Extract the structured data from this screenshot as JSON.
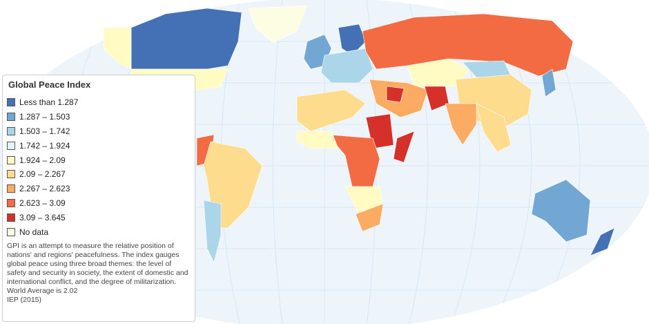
{
  "legend": {
    "title": "Global Peace Index",
    "items": [
      {
        "label": "Less than 1.287",
        "color": "#4470b5"
      },
      {
        "label": "1.287 – 1.503",
        "color": "#72a7d3"
      },
      {
        "label": "1.503 – 1.742",
        "color": "#abd6ea"
      },
      {
        "label": "1.742 – 1.924",
        "color": "#e3f3f8"
      },
      {
        "label": "1.924 – 2.09",
        "color": "#fffbc3"
      },
      {
        "label": "2.09 – 2.267",
        "color": "#fedc8e"
      },
      {
        "label": "2.267 – 2.623",
        "color": "#fbab62"
      },
      {
        "label": "2.623 – 3.09",
        "color": "#f26b43"
      },
      {
        "label": "3.09 – 3.645",
        "color": "#d6302a"
      },
      {
        "label": "No data",
        "color": "#fdfde3"
      }
    ],
    "description": "GPI is an attempt to measure the relative position of nations' and regions' peacefulness. The index gauges global peace using three broad themes: the level of safety and security in society, the extent of domestic and international conflict, and the degree of militarization.",
    "average": "World Average is 2.02",
    "source": "IEP (2015)"
  }
}
